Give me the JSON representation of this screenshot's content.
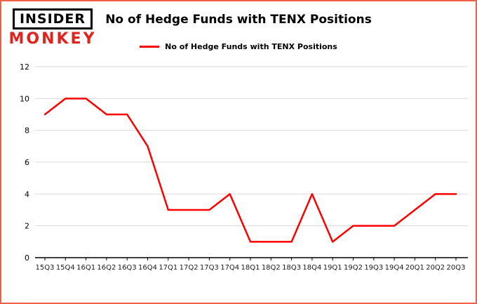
{
  "header": {
    "logo_line1": "INSIDER",
    "logo_line2": "MONKEY",
    "title": "No of Hedge Funds with TENX Positions"
  },
  "legend": {
    "label": "No of Hedge Funds with TENX Positions",
    "line_color": "#ff0000"
  },
  "chart_data": {
    "type": "line",
    "title": "No of Hedge Funds with TENX Positions",
    "categories": [
      "15Q3",
      "15Q4",
      "16Q1",
      "16Q2",
      "16Q3",
      "16Q4",
      "17Q1",
      "17Q2",
      "17Q3",
      "17Q4",
      "18Q1",
      "18Q2",
      "18Q3",
      "18Q4",
      "19Q1",
      "19Q2",
      "19Q3",
      "19Q4",
      "20Q1",
      "20Q2",
      "20Q3"
    ],
    "series": [
      {
        "name": "No of Hedge Funds with TENX Positions",
        "values": [
          9,
          10,
          10,
          9,
          9,
          7,
          3,
          3,
          3,
          4,
          1,
          1,
          1,
          4,
          1,
          2,
          2,
          2,
          3,
          4,
          4
        ]
      }
    ],
    "xlabel": "",
    "ylabel": "",
    "ylim": [
      0,
      12
    ],
    "yticks": [
      0,
      2,
      4,
      6,
      8,
      10,
      12
    ],
    "grid": true,
    "legend_position": "top",
    "line_color": "#ff0000"
  },
  "colors": {
    "frame_border": "#f0604a",
    "logo_red": "#e0231c",
    "grid_line": "#d9d9d9",
    "axis_line": "#000000",
    "series_line": "#ff0000"
  }
}
